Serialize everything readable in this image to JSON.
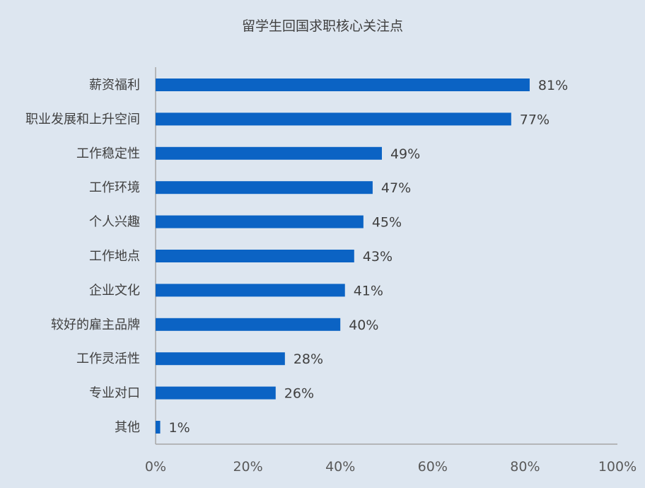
{
  "chart_data": {
    "type": "bar",
    "orientation": "horizontal",
    "title": "留学生回国求职核心关注点",
    "categories": [
      "薪资福利",
      "职业发展和上升空间",
      "工作稳定性",
      "工作环境",
      "个人兴趣",
      "工作地点",
      "企业文化",
      "较好的雇主品牌",
      "工作灵活性",
      "专业对口",
      "其他"
    ],
    "values": [
      81,
      77,
      49,
      47,
      45,
      43,
      41,
      40,
      28,
      26,
      1
    ],
    "value_labels": [
      "81%",
      "77%",
      "49%",
      "47%",
      "45%",
      "43%",
      "41%",
      "40%",
      "28%",
      "26%",
      "1%"
    ],
    "xlim": [
      0,
      100
    ],
    "xticks": [
      0,
      20,
      40,
      60,
      80,
      100
    ],
    "xtick_labels": [
      "0%",
      "20%",
      "40%",
      "60%",
      "80%",
      "100%"
    ],
    "xlabel": "",
    "ylabel": "",
    "grid": false,
    "colors": {
      "bar": "#0b63c4",
      "background": "#dde6f0",
      "axis": "#a6a6a6"
    }
  }
}
